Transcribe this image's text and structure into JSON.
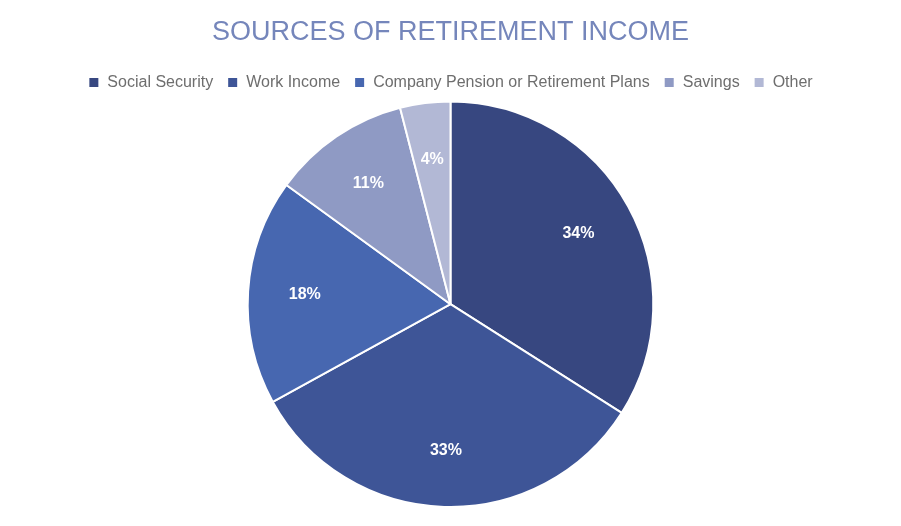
{
  "chart_data": {
    "type": "pie",
    "title": "SOURCES OF RETIREMENT INCOME",
    "categories": [
      "Social Security",
      "Work Income",
      "Company Pension or Retirement Plans",
      "Savings",
      "Other"
    ],
    "values": [
      34,
      33,
      18,
      11,
      4
    ],
    "value_labels": [
      "34%",
      "33%",
      "18%",
      "11%",
      "4%"
    ],
    "colors": [
      "#374780",
      "#3e5597",
      "#4767b0",
      "#8f9ac4",
      "#b2b8d5"
    ],
    "legend": "top",
    "data_labels": true
  }
}
